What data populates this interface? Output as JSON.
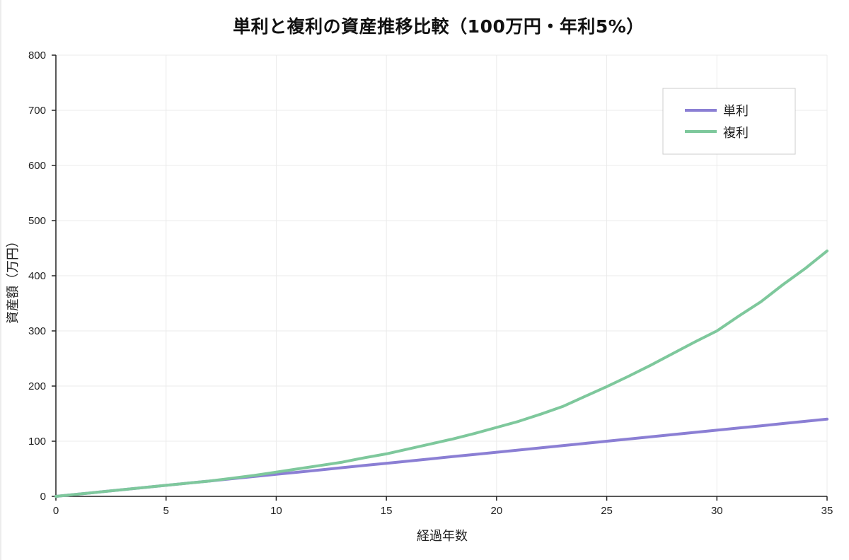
{
  "chart_data": {
    "type": "line",
    "title": "単利と複利の資産推移比較（100万円・年利5%）",
    "xlabel": "経過年数",
    "ylabel": "資産額（万円）",
    "xlim": [
      0,
      35
    ],
    "ylim": [
      0,
      800
    ],
    "x_ticks": [
      0,
      5,
      10,
      15,
      20,
      25,
      30,
      35
    ],
    "y_ticks": [
      0,
      100,
      200,
      300,
      400,
      500,
      600,
      700,
      800
    ],
    "grid": true,
    "legend_position": "upper right",
    "x": [
      0,
      1,
      2,
      3,
      4,
      5,
      6,
      7,
      8,
      9,
      10,
      11,
      12,
      13,
      14,
      15,
      16,
      17,
      18,
      19,
      20,
      21,
      22,
      23,
      24,
      25,
      26,
      27,
      28,
      29,
      30,
      31,
      32,
      33,
      34,
      35
    ],
    "series": [
      {
        "name": "単利",
        "color": "#8b7fd4",
        "values": [
          0,
          4,
          8,
          12,
          16,
          20,
          24,
          28,
          32,
          36,
          40,
          44,
          48,
          52,
          56,
          60,
          64,
          68,
          72,
          76,
          80,
          84,
          88,
          92,
          96,
          100,
          104,
          108,
          112,
          116,
          120,
          124,
          128,
          132,
          136,
          140
        ]
      },
      {
        "name": "複利",
        "color": "#7ec89c",
        "values": [
          0,
          4,
          8,
          12,
          16,
          20,
          24,
          28,
          33,
          38,
          44,
          50,
          56,
          62,
          70,
          77,
          86,
          95,
          104,
          114,
          125,
          136,
          149,
          163,
          181,
          199,
          218,
          238,
          259,
          280,
          300,
          327,
          353,
          384,
          413,
          445
        ]
      }
    ]
  },
  "title": "単利と複利の資産推移比較（100万円・年利5%）",
  "axes": {
    "xlabel": "経過年数",
    "ylabel": "資産額（万円）",
    "x_tick_labels": [
      "0",
      "5",
      "10",
      "15",
      "20",
      "25",
      "30",
      "35"
    ],
    "y_tick_labels": [
      "0",
      "100",
      "200",
      "300",
      "400",
      "500",
      "600",
      "700",
      "800"
    ]
  },
  "legend": {
    "items": [
      {
        "label": "単利",
        "color": "#8b7fd4"
      },
      {
        "label": "複利",
        "color": "#7ec89c"
      }
    ]
  }
}
